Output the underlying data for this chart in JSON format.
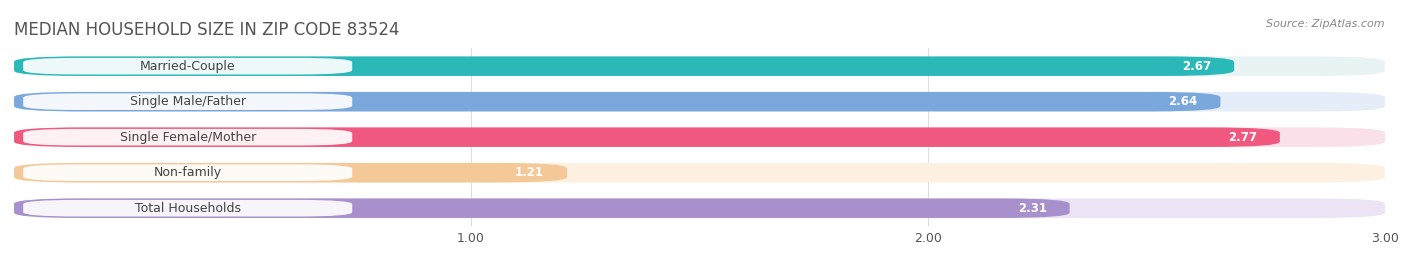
{
  "title": "MEDIAN HOUSEHOLD SIZE IN ZIP CODE 83524",
  "source": "Source: ZipAtlas.com",
  "categories": [
    "Married-Couple",
    "Single Male/Father",
    "Single Female/Mother",
    "Non-family",
    "Total Households"
  ],
  "values": [
    2.67,
    2.64,
    2.77,
    1.21,
    2.31
  ],
  "bar_colors": [
    "#2ab8b8",
    "#7ba8dc",
    "#f05880",
    "#f5c898",
    "#a890cc"
  ],
  "bar_bg_colors": [
    "#e8f4f4",
    "#e4edf8",
    "#fae0e8",
    "#fdf0e0",
    "#ece4f4"
  ],
  "xlim": [
    0,
    3.0
  ],
  "xticks": [
    1.0,
    2.0,
    3.0
  ],
  "value_fontsize": 8.5,
  "label_fontsize": 9,
  "title_fontsize": 12,
  "background_color": "#ffffff",
  "grid_color": "#dddddd"
}
